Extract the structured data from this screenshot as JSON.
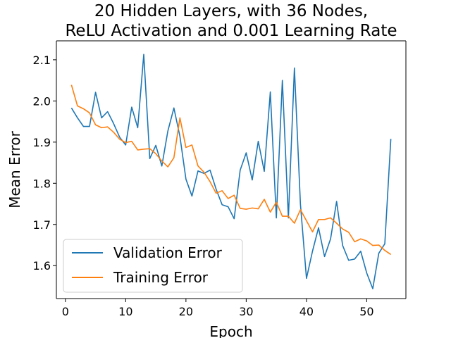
{
  "chart_data": {
    "type": "line",
    "title_line1": "20 Hidden Layers, with 36 Nodes,",
    "title_line2": "ReLU Activation and 0.001 Learning Rate",
    "xlabel": "Epoch",
    "ylabel": "Mean Error",
    "xlim": [
      -1.5,
      56.5
    ],
    "ylim": [
      1.52,
      2.146
    ],
    "xticks": [
      0,
      10,
      20,
      30,
      40,
      50
    ],
    "yticks": [
      1.6,
      1.7,
      1.8,
      1.9,
      2.0,
      2.1
    ],
    "ytick_labels": [
      "1.6",
      "1.7",
      "1.8",
      "1.9",
      "2.0",
      "2.1"
    ],
    "grid": false,
    "legend_position": "lower-left",
    "series": [
      {
        "name": "Validation Error",
        "color": "#1f77b4",
        "x": [
          1,
          2,
          3,
          4,
          5,
          6,
          7,
          8,
          9,
          10,
          11,
          12,
          13,
          14,
          15,
          16,
          17,
          18,
          19,
          20,
          21,
          22,
          23,
          24,
          25,
          26,
          27,
          28,
          29,
          30,
          31,
          32,
          33,
          34,
          35,
          36,
          37,
          38,
          39,
          40,
          41,
          42,
          43,
          44,
          45,
          46,
          47,
          48,
          49,
          50,
          51,
          52,
          53,
          54
        ],
        "y": [
          1.983,
          1.959,
          1.938,
          1.938,
          2.021,
          1.959,
          1.974,
          1.945,
          1.912,
          1.893,
          1.985,
          1.935,
          2.113,
          1.86,
          1.892,
          1.842,
          1.927,
          1.983,
          1.914,
          1.81,
          1.769,
          1.83,
          1.824,
          1.832,
          1.786,
          1.748,
          1.743,
          1.714,
          1.832,
          1.874,
          1.808,
          1.902,
          1.829,
          2.022,
          1.716,
          2.05,
          1.716,
          2.08,
          1.749,
          1.569,
          1.635,
          1.692,
          1.622,
          1.665,
          1.756,
          1.649,
          1.613,
          1.616,
          1.635,
          1.582,
          1.544,
          1.63,
          1.653,
          1.908
        ]
      },
      {
        "name": "Training Error",
        "color": "#ff7f0e",
        "x": [
          1,
          2,
          3,
          4,
          5,
          6,
          7,
          8,
          9,
          10,
          11,
          12,
          13,
          14,
          15,
          16,
          17,
          18,
          19,
          20,
          21,
          22,
          23,
          24,
          25,
          26,
          27,
          28,
          29,
          30,
          31,
          32,
          33,
          34,
          35,
          36,
          37,
          38,
          39,
          40,
          41,
          42,
          43,
          44,
          45,
          46,
          47,
          48,
          49,
          50,
          51,
          52,
          53,
          54
        ],
        "y": [
          2.039,
          1.988,
          1.981,
          1.971,
          1.942,
          1.935,
          1.937,
          1.924,
          1.907,
          1.899,
          1.902,
          1.881,
          1.883,
          1.884,
          1.872,
          1.854,
          1.84,
          1.862,
          1.959,
          1.887,
          1.893,
          1.842,
          1.827,
          1.804,
          1.776,
          1.782,
          1.763,
          1.771,
          1.739,
          1.737,
          1.74,
          1.738,
          1.761,
          1.73,
          1.754,
          1.72,
          1.72,
          1.703,
          1.736,
          1.709,
          1.682,
          1.712,
          1.712,
          1.716,
          1.703,
          1.689,
          1.681,
          1.658,
          1.665,
          1.66,
          1.649,
          1.65,
          1.637,
          1.627
        ]
      }
    ]
  }
}
